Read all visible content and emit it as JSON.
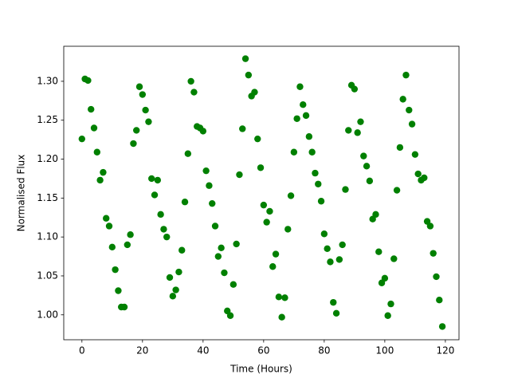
{
  "chart_data": {
    "type": "scatter",
    "x_label": "Time (Hours)",
    "y_label": "Normalised Flux",
    "xlim": [
      -6,
      124.5
    ],
    "ylim": [
      0.968,
      1.345
    ],
    "xticks": [
      0,
      20,
      40,
      60,
      80,
      100,
      120
    ],
    "yticks": [
      {
        "value": 1.0,
        "label": "1.00"
      },
      {
        "value": 1.05,
        "label": "1.05"
      },
      {
        "value": 1.1,
        "label": "1.10"
      },
      {
        "value": 1.15,
        "label": "1.15"
      },
      {
        "value": 1.2,
        "label": "1.20"
      },
      {
        "value": 1.25,
        "label": "1.25"
      },
      {
        "value": 1.3,
        "label": "1.30"
      }
    ],
    "grid": false,
    "series": [
      {
        "color": "#008000",
        "x": [
          0,
          1,
          2,
          3,
          4,
          5,
          6,
          7,
          8,
          9,
          10,
          11,
          12,
          13,
          14,
          15,
          16,
          17,
          18,
          19,
          20,
          21,
          22,
          23,
          24,
          25,
          26,
          27,
          28,
          29,
          30,
          31,
          32,
          33,
          34,
          35,
          36,
          37,
          38,
          39,
          40,
          41,
          42,
          43,
          44,
          45,
          46,
          47,
          48,
          49,
          50,
          51,
          52,
          53,
          54,
          55,
          56,
          57,
          58,
          59,
          60,
          61,
          62,
          63,
          64,
          65,
          66,
          67,
          68,
          69,
          70,
          71,
          72,
          73,
          74,
          75,
          76,
          77,
          78,
          79,
          80,
          81,
          82,
          83,
          84,
          85,
          86,
          87,
          88,
          89,
          90,
          91,
          92,
          93,
          94,
          95,
          96,
          97,
          98,
          99,
          100,
          101,
          102,
          103,
          104,
          105,
          106,
          107,
          108,
          109,
          110,
          111,
          112,
          113,
          114,
          115,
          116,
          117,
          118,
          119
        ],
        "values": [
          1.226,
          1.303,
          1.301,
          1.264,
          1.24,
          1.209,
          1.173,
          1.183,
          1.124,
          1.114,
          1.087,
          1.058,
          1.031,
          1.01,
          1.01,
          1.09,
          1.103,
          1.22,
          1.237,
          1.293,
          1.283,
          1.263,
          1.248,
          1.175,
          1.154,
          1.173,
          1.129,
          1.11,
          1.1,
          1.048,
          1.024,
          1.032,
          1.055,
          1.083,
          1.145,
          1.207,
          1.3,
          1.286,
          1.242,
          1.24,
          1.236,
          1.185,
          1.166,
          1.143,
          1.114,
          1.075,
          1.086,
          1.054,
          1.005,
          0.999,
          1.039,
          1.091,
          1.18,
          1.239,
          1.329,
          1.308,
          1.281,
          1.286,
          1.226,
          1.189,
          1.141,
          1.119,
          1.133,
          1.062,
          1.078,
          1.023,
          0.997,
          1.022,
          1.11,
          1.153,
          1.209,
          1.252,
          1.293,
          1.27,
          1.256,
          1.229,
          1.209,
          1.182,
          1.168,
          1.146,
          1.104,
          1.085,
          1.068,
          1.016,
          1.002,
          1.071,
          1.09,
          1.161,
          1.237,
          1.295,
          1.29,
          1.234,
          1.248,
          1.204,
          1.191,
          1.172,
          1.123,
          1.129,
          1.081,
          1.041,
          1.047,
          0.999,
          1.014,
          1.072,
          1.16,
          1.215,
          1.277,
          1.308,
          1.263,
          1.245,
          1.206,
          1.181,
          1.173,
          1.176,
          1.12,
          1.114,
          1.079,
          1.049,
          1.019,
          0.985
        ]
      }
    ]
  }
}
